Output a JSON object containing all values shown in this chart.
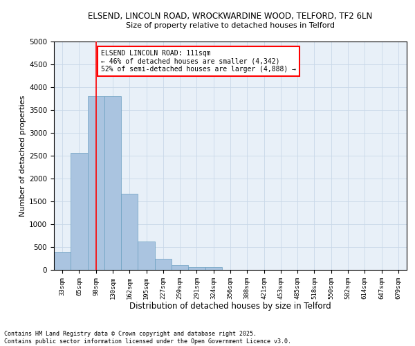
{
  "title_line1": "ELSEND, LINCOLN ROAD, WROCKWARDINE WOOD, TELFORD, TF2 6LN",
  "title_line2": "Size of property relative to detached houses in Telford",
  "categories": [
    "33sqm",
    "65sqm",
    "98sqm",
    "130sqm",
    "162sqm",
    "195sqm",
    "227sqm",
    "259sqm",
    "291sqm",
    "324sqm",
    "356sqm",
    "388sqm",
    "421sqm",
    "453sqm",
    "485sqm",
    "518sqm",
    "550sqm",
    "582sqm",
    "614sqm",
    "647sqm",
    "679sqm"
  ],
  "values": [
    390,
    2560,
    3800,
    3800,
    1670,
    620,
    250,
    110,
    60,
    55,
    0,
    0,
    0,
    0,
    0,
    0,
    0,
    0,
    0,
    0,
    0
  ],
  "bar_color": "#aac4e0",
  "bar_edge_color": "#6a9fc0",
  "vline_x": 2,
  "vline_color": "red",
  "annotation_text": "ELSEND LINCOLN ROAD: 111sqm\n← 46% of detached houses are smaller (4,342)\n52% of semi-detached houses are larger (4,888) →",
  "annotation_box_color": "white",
  "annotation_box_edge_color": "red",
  "xlabel": "Distribution of detached houses by size in Telford",
  "ylabel": "Number of detached properties",
  "ylim": [
    0,
    5000
  ],
  "yticks": [
    0,
    500,
    1000,
    1500,
    2000,
    2500,
    3000,
    3500,
    4000,
    4500,
    5000
  ],
  "grid_color": "#c8d8e8",
  "background_color": "#e8f0f8",
  "footer_line1": "Contains HM Land Registry data © Crown copyright and database right 2025.",
  "footer_line2": "Contains public sector information licensed under the Open Government Licence v3.0."
}
